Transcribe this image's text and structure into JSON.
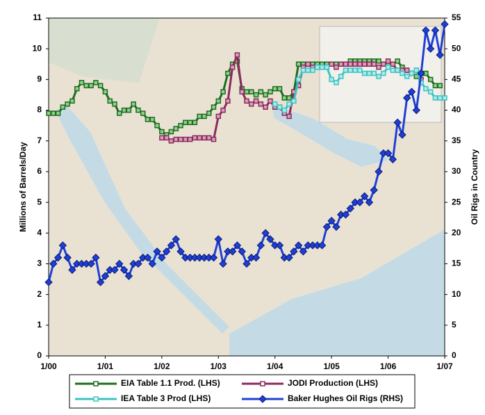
{
  "chart_data": {
    "type": "line",
    "y_label": "Millions of Barrels/Day",
    "y2_label": "Oil Rigs in Country",
    "x": [
      0,
      1,
      2,
      3,
      4,
      5,
      6,
      7,
      8,
      9,
      10,
      11,
      12,
      13,
      14,
      15,
      16,
      17,
      18,
      19,
      20,
      21,
      22,
      23,
      24,
      25,
      26,
      27,
      28,
      29,
      30,
      31,
      32,
      33,
      34,
      35,
      36,
      37,
      38,
      39,
      40,
      41,
      42,
      43,
      44,
      45,
      46,
      47,
      48,
      49,
      50,
      51,
      52,
      53,
      54,
      55,
      56,
      57,
      58,
      59,
      60,
      61,
      62,
      63,
      64,
      65,
      66,
      67,
      68,
      69,
      70,
      71,
      72,
      73,
      74,
      75,
      76,
      77,
      78,
      79,
      80,
      81,
      82,
      83,
      84
    ],
    "xlim": [
      0,
      84
    ],
    "xticks": [
      {
        "value": 0,
        "label": "1/00"
      },
      {
        "value": 12,
        "label": "1/01"
      },
      {
        "value": 24,
        "label": "1/02"
      },
      {
        "value": 36,
        "label": "1/03"
      },
      {
        "value": 48,
        "label": "1/04"
      },
      {
        "value": 60,
        "label": "1/05"
      },
      {
        "value": 72,
        "label": "1/06"
      },
      {
        "value": 84,
        "label": "1/07"
      }
    ],
    "ylim": [
      0,
      11
    ],
    "yticks": [
      0,
      1,
      2,
      3,
      4,
      5,
      6,
      7,
      8,
      9,
      10,
      11
    ],
    "y2lim": [
      0,
      55
    ],
    "y2ticks": [
      0,
      5,
      10,
      15,
      20,
      25,
      30,
      35,
      40,
      45,
      50,
      55
    ],
    "series": [
      {
        "name": "EIA Table 1.1 Prod. (LHS)",
        "color": "#1e6b1e",
        "marker": "square",
        "values": [
          7.9,
          7.9,
          7.9,
          8.1,
          8.2,
          8.3,
          8.7,
          8.9,
          8.8,
          8.8,
          8.9,
          8.8,
          8.6,
          8.3,
          8.2,
          7.9,
          8.0,
          8.0,
          8.2,
          8.0,
          7.9,
          7.7,
          7.7,
          7.5,
          7.3,
          7.2,
          7.3,
          7.4,
          7.5,
          7.6,
          7.6,
          7.6,
          7.8,
          7.8,
          7.9,
          8.1,
          8.3,
          8.6,
          9.2,
          9.5,
          9.6,
          8.7,
          8.6,
          8.6,
          8.5,
          8.6,
          8.5,
          8.6,
          8.7,
          8.7,
          8.4,
          8.4,
          8.6,
          9.5,
          9.5,
          9.5,
          9.5,
          9.5,
          9.5,
          9.5,
          9.5,
          9.5,
          9.5,
          9.5,
          9.6,
          9.6,
          9.6,
          9.6,
          9.6,
          9.6,
          9.6,
          9.5,
          9.5,
          9.5,
          9.6,
          9.4,
          9.3,
          9.2,
          9.1,
          9.2,
          9.2,
          9.0,
          8.8,
          8.8,
          null
        ]
      },
      {
        "name": "JODI Production (LHS)",
        "color": "#8b2a5a",
        "marker": "square",
        "values": [
          null,
          null,
          null,
          null,
          null,
          null,
          null,
          null,
          null,
          null,
          null,
          null,
          null,
          null,
          null,
          null,
          null,
          null,
          null,
          null,
          null,
          null,
          null,
          null,
          7.1,
          7.1,
          7.0,
          7.05,
          7.05,
          7.05,
          7.05,
          7.1,
          7.1,
          7.1,
          7.1,
          7.05,
          7.8,
          8.0,
          8.3,
          9.4,
          9.8,
          8.6,
          8.3,
          8.2,
          8.3,
          8.2,
          8.1,
          8.3,
          8.1,
          8.1,
          7.9,
          7.8,
          8.6,
          8.8,
          9.4,
          9.5,
          9.4,
          9.4,
          9.4,
          9.4,
          9.5,
          9.4,
          9.5,
          9.5,
          9.5,
          9.5,
          9.5,
          9.5,
          9.5,
          9.5,
          9.4,
          9.5,
          9.6,
          9.5,
          9.3,
          9.3,
          9.3,
          9.2,
          9.3,
          9.0,
          null,
          null,
          null,
          null,
          null
        ]
      },
      {
        "name": "IEA Table 3 Prod (LHS)",
        "color": "#3cc3c3",
        "marker": "square",
        "values": [
          null,
          null,
          null,
          null,
          null,
          null,
          null,
          null,
          null,
          null,
          null,
          null,
          null,
          null,
          null,
          null,
          null,
          null,
          null,
          null,
          null,
          null,
          null,
          null,
          null,
          null,
          null,
          null,
          null,
          null,
          null,
          null,
          null,
          null,
          null,
          null,
          null,
          null,
          null,
          null,
          null,
          null,
          null,
          null,
          null,
          null,
          null,
          null,
          8.2,
          8.1,
          8.0,
          8.2,
          8.3,
          9.0,
          9.3,
          9.3,
          9.3,
          9.4,
          9.4,
          9.4,
          9.0,
          8.9,
          9.1,
          9.3,
          9.3,
          9.3,
          9.3,
          9.2,
          9.2,
          9.2,
          9.1,
          9.2,
          9.4,
          9.3,
          9.3,
          9.2,
          9.1,
          9.2,
          9.3,
          8.9,
          8.7,
          8.6,
          8.4,
          8.4,
          8.4
        ]
      },
      {
        "name": "Baker Hughes Oil Rigs (RHS)",
        "color": "#1f3fd6",
        "marker": "diamond",
        "axis": "y2",
        "values": [
          12,
          15,
          16,
          18,
          16,
          14,
          15,
          15,
          15,
          15,
          16,
          12,
          13,
          14,
          14,
          15,
          14,
          13,
          15,
          15,
          16,
          16,
          15,
          17,
          16,
          17,
          18,
          19,
          17,
          16,
          16,
          16,
          16,
          16,
          16,
          16,
          19,
          15,
          17,
          17,
          18,
          17,
          15,
          16,
          16,
          18,
          20,
          19,
          18,
          18,
          16,
          16,
          17,
          18,
          17,
          18,
          18,
          18,
          18,
          21,
          22,
          21,
          23,
          23,
          24,
          25,
          25,
          26,
          25,
          27,
          30,
          33,
          33,
          32,
          38,
          36,
          42,
          43,
          40,
          46,
          53,
          50,
          53,
          49,
          54
        ]
      }
    ]
  }
}
